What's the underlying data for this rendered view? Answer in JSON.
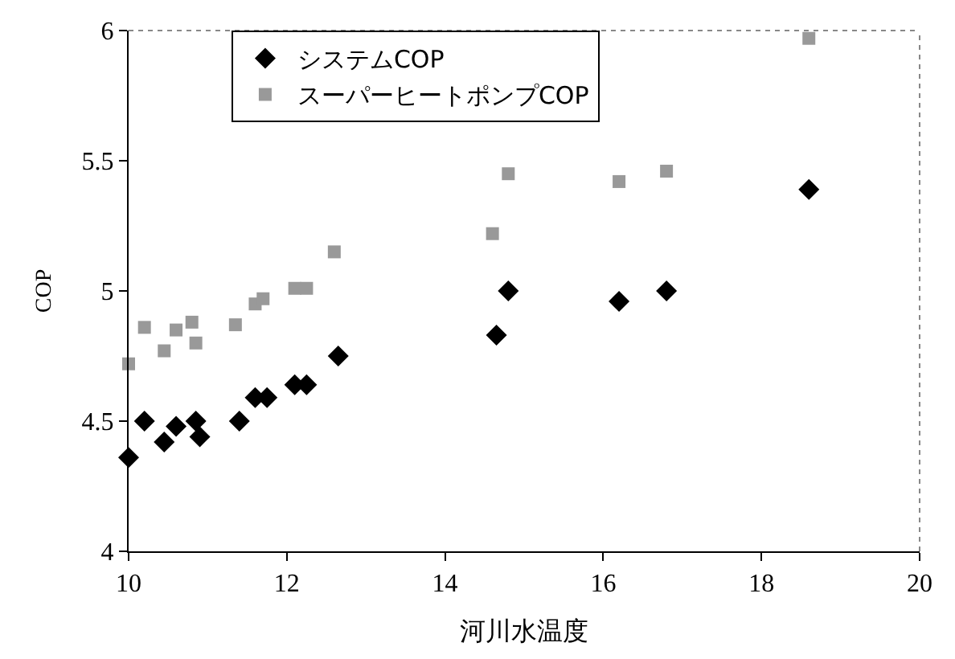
{
  "chart_data": {
    "type": "scatter",
    "xlabel": "河川水温度",
    "ylabel": "COP",
    "xlim": [
      10,
      20
    ],
    "xticks": [
      10,
      12,
      14,
      16,
      18,
      20
    ],
    "ylim": [
      4,
      6
    ],
    "yticks": [
      4,
      4.5,
      5,
      5.5,
      6
    ],
    "legend": "top",
    "series": [
      {
        "name": "システムCOP",
        "color": "#000000",
        "marker": "diamond",
        "x": [
          10.0,
          10.2,
          10.45,
          10.6,
          10.85,
          10.9,
          11.4,
          11.6,
          11.75,
          12.1,
          12.25,
          12.65,
          14.65,
          14.8,
          16.2,
          16.8,
          18.6
        ],
        "values": [
          4.36,
          4.5,
          4.42,
          4.48,
          4.5,
          4.44,
          4.5,
          4.59,
          4.59,
          4.64,
          4.64,
          4.75,
          4.83,
          5.0,
          4.96,
          5.0,
          5.39
        ]
      },
      {
        "name": "スーパーヒートポンプCOP",
        "color": "#999999",
        "marker": "square",
        "x": [
          10.0,
          10.2,
          10.45,
          10.6,
          10.8,
          10.85,
          11.35,
          11.6,
          11.7,
          12.1,
          12.25,
          12.6,
          14.6,
          14.8,
          16.2,
          16.8,
          18.6
        ],
        "values": [
          4.72,
          4.86,
          4.77,
          4.85,
          4.88,
          4.8,
          4.87,
          4.95,
          4.97,
          5.01,
          5.01,
          5.15,
          5.22,
          5.45,
          5.42,
          5.46,
          5.97
        ]
      }
    ]
  }
}
